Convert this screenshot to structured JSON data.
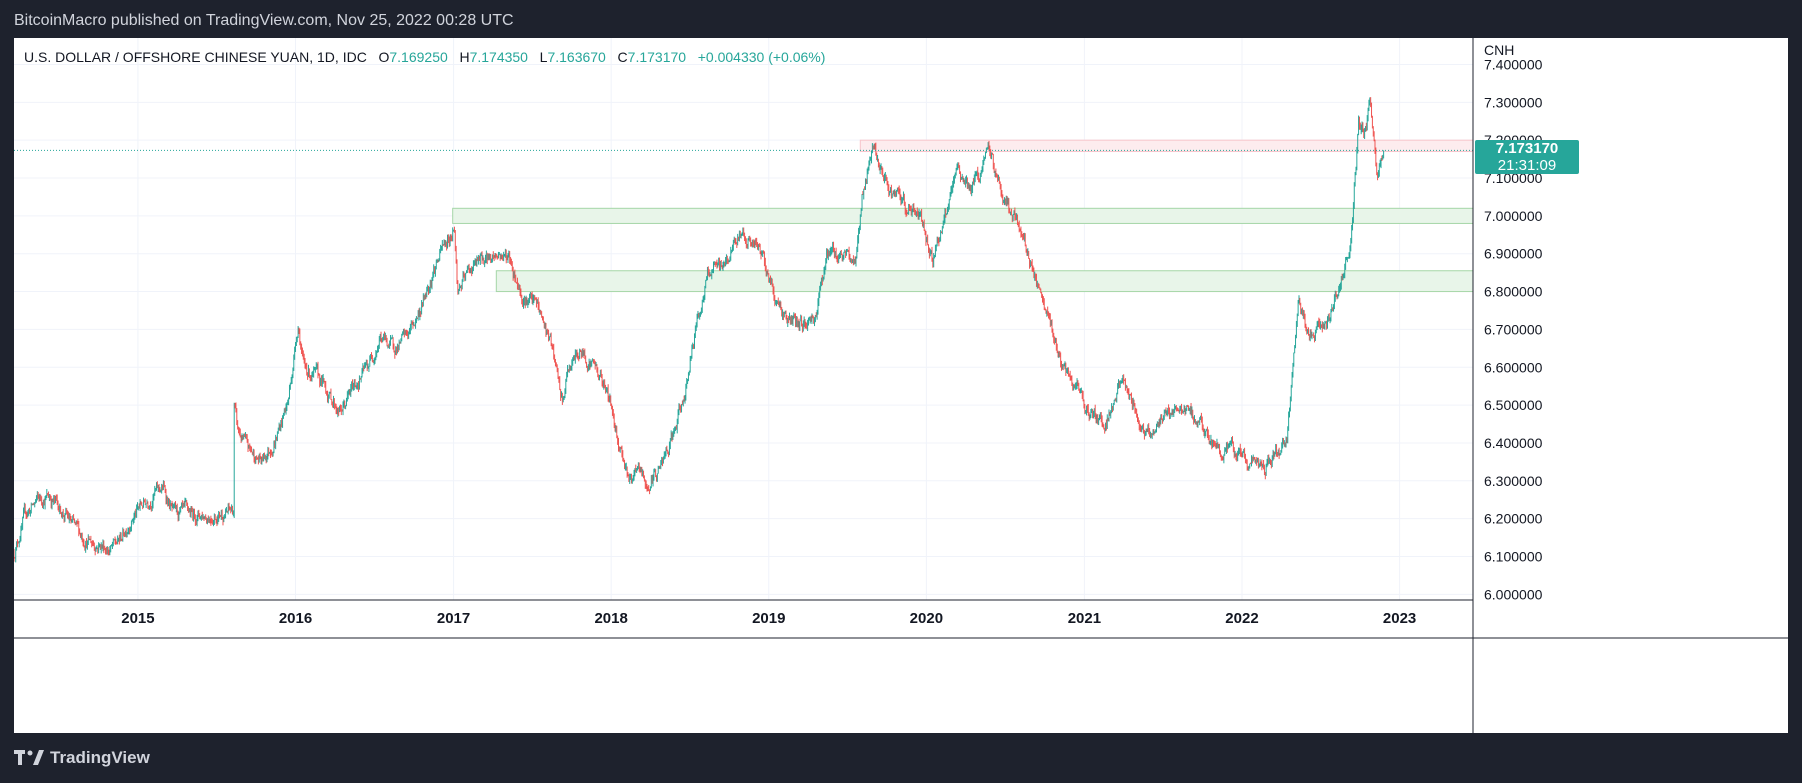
{
  "header": {
    "published_line": "BitcoinMacro published on TradingView.com, Nov 25, 2022 00:28 UTC"
  },
  "legend": {
    "symbol": "U.S. DOLLAR / OFFSHORE CHINESE YUAN, 1D, IDC",
    "o_label": "O",
    "o_value": "7.169250",
    "h_label": "H",
    "h_value": "7.174350",
    "l_label": "L",
    "l_value": "7.163670",
    "c_label": "C",
    "c_value": "7.173170",
    "change": "+0.004330 (+0.06%)"
  },
  "price_tag": {
    "price": "7.173170",
    "countdown": "21:31:09"
  },
  "footer": {
    "brand": "TradingView",
    "logo_icon": "tradingview-logo-icon"
  },
  "colors": {
    "up": "#26a69a",
    "down": "#ef5350",
    "support_zone": "#e8f5e9",
    "resistance_zone": "#fdecee",
    "grid": "#f0f3fa",
    "background": "#ffffff",
    "frame": "#1e222d"
  },
  "chart_data": {
    "type": "candlestick",
    "interval": "1D",
    "currency_label": "CNH",
    "x_range": [
      "2014-03-20",
      "2023-06-20"
    ],
    "ylim": [
      5.985,
      7.47
    ],
    "x_ticks": [
      "2015",
      "2016",
      "2017",
      "2018",
      "2019",
      "2020",
      "2021",
      "2022",
      "2023"
    ],
    "y_ticks": [
      "6.000000",
      "6.100000",
      "6.200000",
      "6.300000",
      "6.400000",
      "6.500000",
      "6.600000",
      "6.700000",
      "6.800000",
      "6.900000",
      "7.000000",
      "7.100000",
      "7.200000",
      "7.300000",
      "7.400000"
    ],
    "last_price": 7.17317,
    "zones": [
      {
        "type": "resistance",
        "from": "2019-08-01",
        "to": "2023-06-20",
        "low": 7.17,
        "high": 7.2
      },
      {
        "type": "support",
        "from": "2016-12-30",
        "to": "2023-06-20",
        "low": 6.98,
        "high": 7.02
      },
      {
        "type": "support",
        "from": "2017-04-10",
        "to": "2023-06-20",
        "low": 6.8,
        "high": 6.855
      }
    ],
    "path": [
      [
        "2014-03-20",
        6.11
      ],
      [
        "2014-04-15",
        6.21
      ],
      [
        "2014-05-15",
        6.25
      ],
      [
        "2014-06-10",
        6.26
      ],
      [
        "2014-07-10",
        6.22
      ],
      [
        "2014-08-10",
        6.17
      ],
      [
        "2014-09-10",
        6.14
      ],
      [
        "2014-10-10",
        6.13
      ],
      [
        "2014-11-01",
        6.12
      ],
      [
        "2014-11-20",
        6.14
      ],
      [
        "2014-12-15",
        6.2
      ],
      [
        "2015-01-15",
        6.24
      ],
      [
        "2015-02-10",
        6.27
      ],
      [
        "2015-03-01",
        6.28
      ],
      [
        "2015-03-25",
        6.21
      ],
      [
        "2015-05-01",
        6.21
      ],
      [
        "2015-06-15",
        6.21
      ],
      [
        "2015-08-10",
        6.22
      ],
      [
        "2015-08-12",
        6.5
      ],
      [
        "2015-08-20",
        6.43
      ],
      [
        "2015-09-15",
        6.38
      ],
      [
        "2015-10-15",
        6.35
      ],
      [
        "2015-11-15",
        6.41
      ],
      [
        "2015-12-15",
        6.51
      ],
      [
        "2016-01-07",
        6.72
      ],
      [
        "2016-01-20",
        6.6
      ],
      [
        "2016-03-01",
        6.56
      ],
      [
        "2016-04-15",
        6.48
      ],
      [
        "2016-05-15",
        6.55
      ],
      [
        "2016-06-15",
        6.6
      ],
      [
        "2016-07-15",
        6.68
      ],
      [
        "2016-08-15",
        6.65
      ],
      [
        "2016-09-15",
        6.68
      ],
      [
        "2016-10-15",
        6.75
      ],
      [
        "2016-11-15",
        6.86
      ],
      [
        "2016-12-15",
        6.93
      ],
      [
        "2017-01-03",
        6.97
      ],
      [
        "2017-01-10",
        6.8
      ],
      [
        "2017-02-15",
        6.87
      ],
      [
        "2017-04-15",
        6.9
      ],
      [
        "2017-05-10",
        6.89
      ],
      [
        "2017-06-10",
        6.79
      ],
      [
        "2017-07-15",
        6.76
      ],
      [
        "2017-08-15",
        6.66
      ],
      [
        "2017-09-10",
        6.5
      ],
      [
        "2017-09-25",
        6.6
      ],
      [
        "2017-10-20",
        6.64
      ],
      [
        "2017-11-20",
        6.61
      ],
      [
        "2017-12-20",
        6.55
      ],
      [
        "2018-01-20",
        6.4
      ],
      [
        "2018-02-15",
        6.3
      ],
      [
        "2018-03-10",
        6.32
      ],
      [
        "2018-03-26",
        6.28
      ],
      [
        "2018-04-20",
        6.33
      ],
      [
        "2018-05-15",
        6.38
      ],
      [
        "2018-06-15",
        6.5
      ],
      [
        "2018-07-15",
        6.7
      ],
      [
        "2018-08-15",
        6.85
      ],
      [
        "2018-09-15",
        6.86
      ],
      [
        "2018-10-15",
        6.93
      ],
      [
        "2018-11-01",
        6.96
      ],
      [
        "2018-11-20",
        6.93
      ],
      [
        "2018-12-20",
        6.89
      ],
      [
        "2019-01-20",
        6.77
      ],
      [
        "2019-02-20",
        6.72
      ],
      [
        "2019-03-20",
        6.71
      ],
      [
        "2019-04-20",
        6.74
      ],
      [
        "2019-05-15",
        6.9
      ],
      [
        "2019-06-15",
        6.9
      ],
      [
        "2019-07-20",
        6.88
      ],
      [
        "2019-08-06",
        7.06
      ],
      [
        "2019-09-03",
        7.18
      ],
      [
        "2019-09-20",
        7.1
      ],
      [
        "2019-10-15",
        7.06
      ],
      [
        "2019-11-15",
        7.02
      ],
      [
        "2019-12-20",
        7.0
      ],
      [
        "2020-01-15",
        6.89
      ],
      [
        "2020-02-15",
        7.0
      ],
      [
        "2020-03-15",
        7.12
      ],
      [
        "2020-04-15",
        7.07
      ],
      [
        "2020-05-27",
        7.17
      ],
      [
        "2020-06-20",
        7.07
      ],
      [
        "2020-07-20",
        7.0
      ],
      [
        "2020-08-20",
        6.92
      ],
      [
        "2020-09-20",
        6.78
      ],
      [
        "2020-10-20",
        6.69
      ],
      [
        "2020-11-20",
        6.57
      ],
      [
        "2020-12-20",
        6.53
      ],
      [
        "2021-01-20",
        6.47
      ],
      [
        "2021-02-20",
        6.46
      ],
      [
        "2021-03-31",
        6.57
      ],
      [
        "2021-04-20",
        6.51
      ],
      [
        "2021-05-20",
        6.43
      ],
      [
        "2021-06-20",
        6.45
      ],
      [
        "2021-07-20",
        6.48
      ],
      [
        "2021-08-20",
        6.49
      ],
      [
        "2021-09-20",
        6.46
      ],
      [
        "2021-10-20",
        6.4
      ],
      [
        "2021-11-20",
        6.38
      ],
      [
        "2021-12-20",
        6.37
      ],
      [
        "2022-01-20",
        6.35
      ],
      [
        "2022-02-20",
        6.33
      ],
      [
        "2022-03-20",
        6.37
      ],
      [
        "2022-04-15",
        6.4
      ],
      [
        "2022-04-30",
        6.6
      ],
      [
        "2022-05-12",
        6.79
      ],
      [
        "2022-06-01",
        6.68
      ],
      [
        "2022-07-01",
        6.71
      ],
      [
        "2022-08-01",
        6.75
      ],
      [
        "2022-08-20",
        6.84
      ],
      [
        "2022-09-10",
        6.93
      ],
      [
        "2022-09-28",
        7.24
      ],
      [
        "2022-10-15",
        7.22
      ],
      [
        "2022-10-25",
        7.31
      ],
      [
        "2022-11-10",
        7.11
      ],
      [
        "2022-11-25",
        7.17317
      ]
    ]
  }
}
